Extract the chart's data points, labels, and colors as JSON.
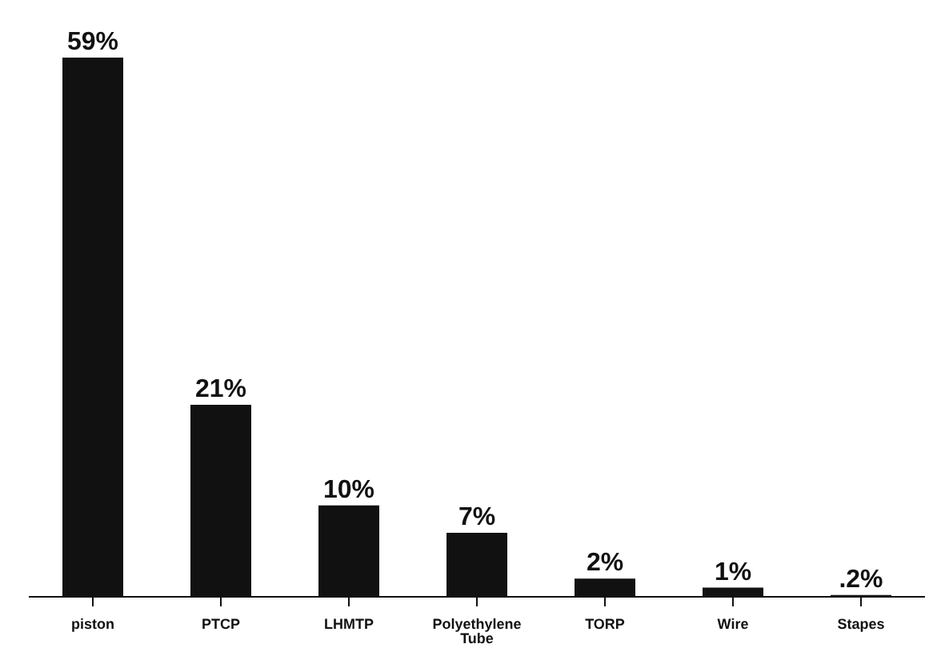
{
  "chart_data": {
    "type": "bar",
    "categories": [
      "piston",
      "PTCP",
      "LHMTP",
      "Polyethylene Tube",
      "TORP",
      "Wire",
      "Stapes"
    ],
    "values": [
      59,
      21,
      10,
      7,
      2,
      1,
      0.2
    ],
    "value_labels": [
      "59%",
      "21%",
      "10%",
      "7%",
      "2%",
      "1%",
      ".2%"
    ],
    "color": "#111111",
    "grid": false,
    "legend": false
  }
}
